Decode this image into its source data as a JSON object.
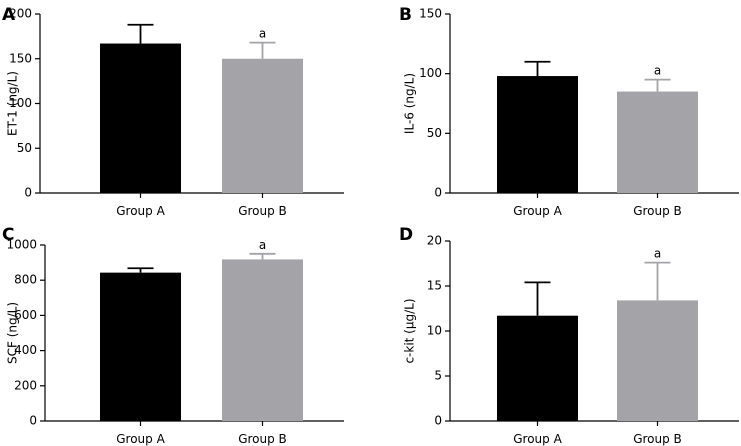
{
  "colors": {
    "group_a": "#000000",
    "group_b": "#a3a3a8",
    "axis": "#000000"
  },
  "chart_data": [
    {
      "panel": "A",
      "type": "bar",
      "categories": [
        "Group A",
        "Group B"
      ],
      "values": [
        167,
        150
      ],
      "errors": [
        21,
        18
      ],
      "significance": [
        "",
        "a"
      ],
      "ylabel": "ET-1 (ng/L)",
      "ylim": [
        0,
        200
      ],
      "yticks": [
        0,
        50,
        100,
        150,
        200
      ],
      "xlabel": "",
      "grid": false
    },
    {
      "panel": "B",
      "type": "bar",
      "categories": [
        "Group A",
        "Group B"
      ],
      "values": [
        98,
        85
      ],
      "errors": [
        12,
        10
      ],
      "significance": [
        "",
        "a"
      ],
      "ylabel": "IL-6 (ng/L)",
      "ylim": [
        0,
        150
      ],
      "yticks": [
        0,
        50,
        100,
        150
      ],
      "xlabel": "",
      "grid": false
    },
    {
      "panel": "C",
      "type": "bar",
      "categories": [
        "Group A",
        "Group B"
      ],
      "values": [
        843,
        918
      ],
      "errors": [
        25,
        32
      ],
      "significance": [
        "",
        "a"
      ],
      "ylabel": "SCF (ng/L)",
      "ylim": [
        0,
        1000
      ],
      "yticks": [
        0,
        200,
        400,
        600,
        800,
        1000
      ],
      "xlabel": "",
      "grid": false
    },
    {
      "panel": "D",
      "type": "bar",
      "categories": [
        "Group A",
        "Group B"
      ],
      "values": [
        11.7,
        13.4
      ],
      "errors": [
        3.7,
        4.2
      ],
      "significance": [
        "",
        "a"
      ],
      "ylabel": "c-kit (μg/L)",
      "ylim": [
        0,
        20
      ],
      "yticks": [
        0,
        5,
        10,
        15,
        20
      ],
      "xlabel": "",
      "grid": false
    }
  ]
}
